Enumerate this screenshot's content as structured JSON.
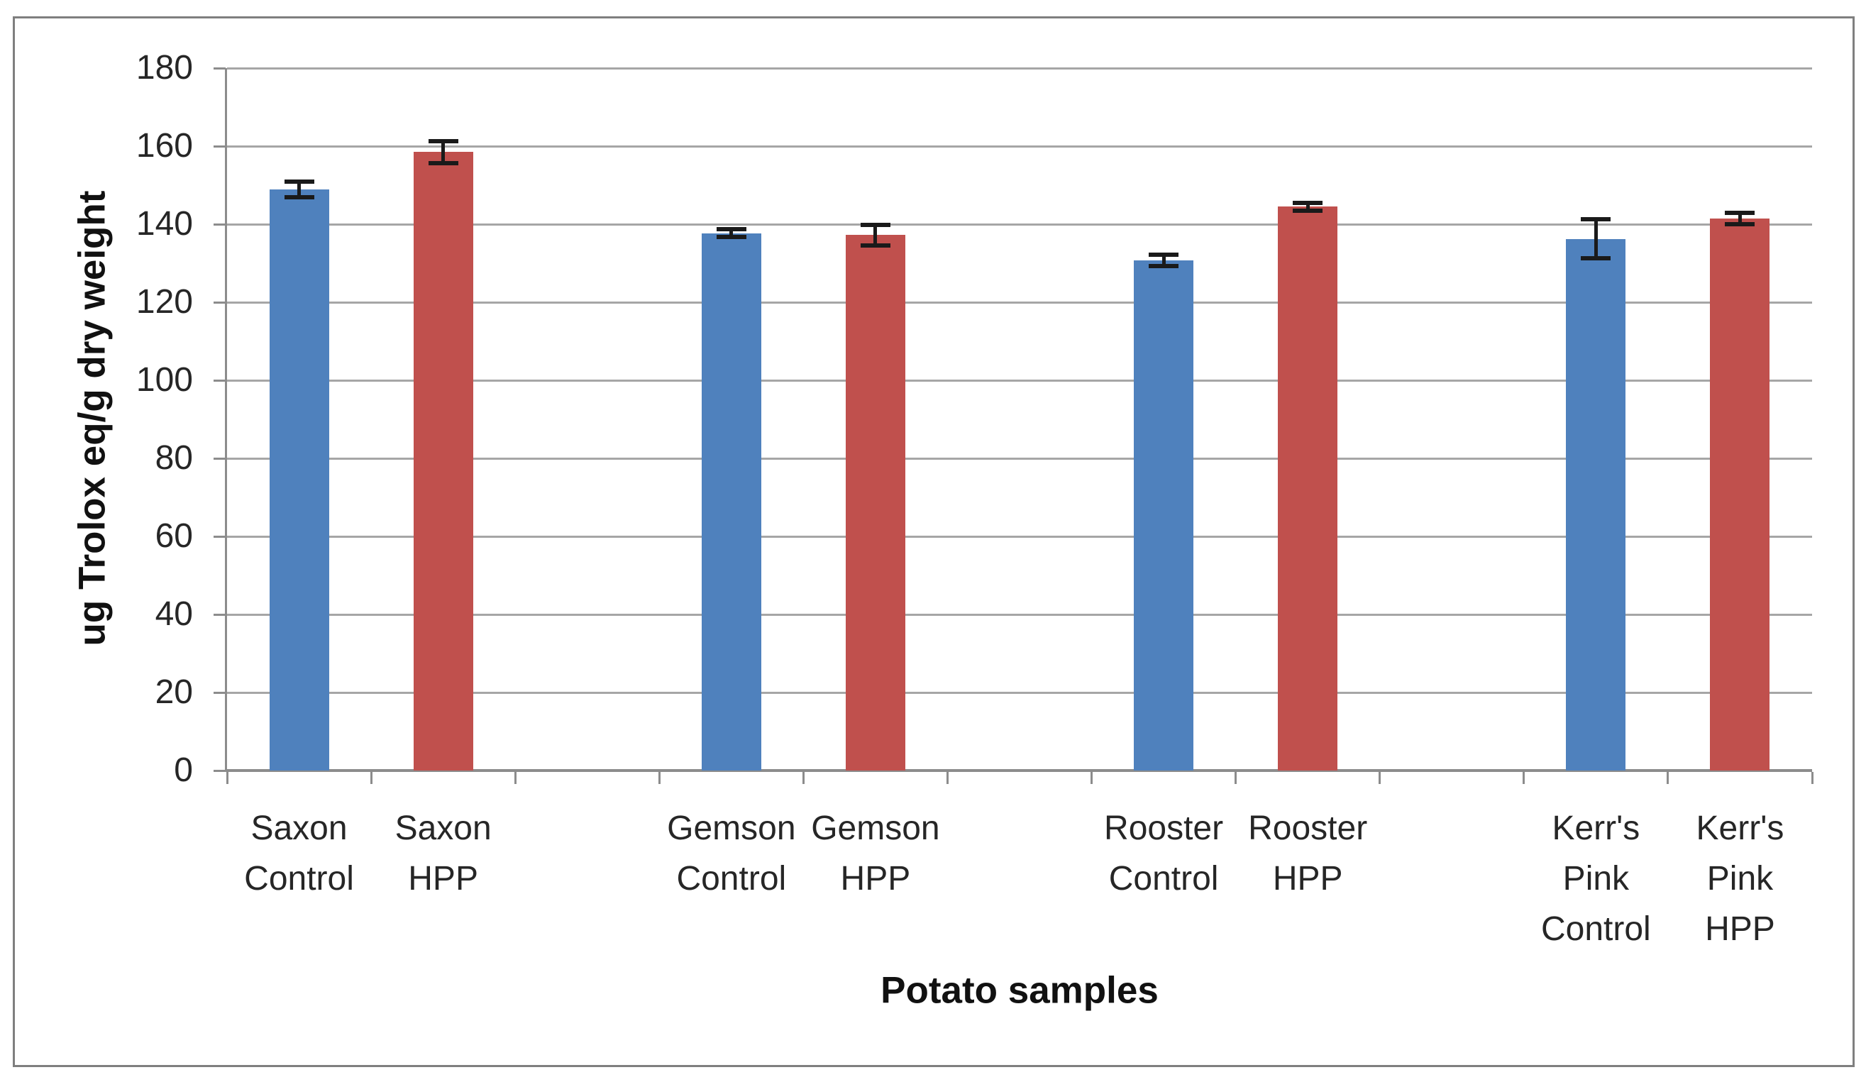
{
  "chart_data": {
    "type": "bar",
    "title": "",
    "xlabel": "Potato samples",
    "ylabel": "ug Trolox eq/g dry weight",
    "ylim": [
      0,
      180
    ],
    "ytick_step": 20,
    "yticks": [
      0,
      20,
      40,
      60,
      80,
      100,
      120,
      140,
      160,
      180
    ],
    "grid": true,
    "legend": false,
    "error_bars": true,
    "colors": {
      "Control": "#4F81BD",
      "HPP": "#C0504D"
    },
    "categories": [
      "Saxon Control",
      "Saxon HPP",
      "Gemson Control",
      "Gemson HPP",
      "Rooster Control",
      "Rooster HPP",
      "Kerr's Pink Control",
      "Kerr's Pink HPP"
    ],
    "bars": [
      {
        "label_lines": [
          "Saxon",
          "Control"
        ],
        "group": "Control",
        "value": 149.0,
        "error": 2.0
      },
      {
        "label_lines": [
          "Saxon",
          "HPP"
        ],
        "group": "HPP",
        "value": 158.5,
        "error": 2.8
      },
      {
        "label_lines": [
          "Gemson",
          "Control"
        ],
        "group": "Control",
        "value": 137.7,
        "error": 1.0
      },
      {
        "label_lines": [
          "Gemson",
          "HPP"
        ],
        "group": "HPP",
        "value": 137.2,
        "error": 2.6
      },
      {
        "label_lines": [
          "Rooster",
          "Control"
        ],
        "group": "Control",
        "value": 130.7,
        "error": 1.5
      },
      {
        "label_lines": [
          "Rooster",
          "HPP"
        ],
        "group": "HPP",
        "value": 144.5,
        "error": 1.0
      },
      {
        "label_lines": [
          "Kerr's",
          "Pink",
          "Control"
        ],
        "group": "Control",
        "value": 136.2,
        "error": 5.0
      },
      {
        "label_lines": [
          "Kerr's",
          "Pink",
          "HPP"
        ],
        "group": "HPP",
        "value": 141.5,
        "error": 1.5
      }
    ]
  }
}
